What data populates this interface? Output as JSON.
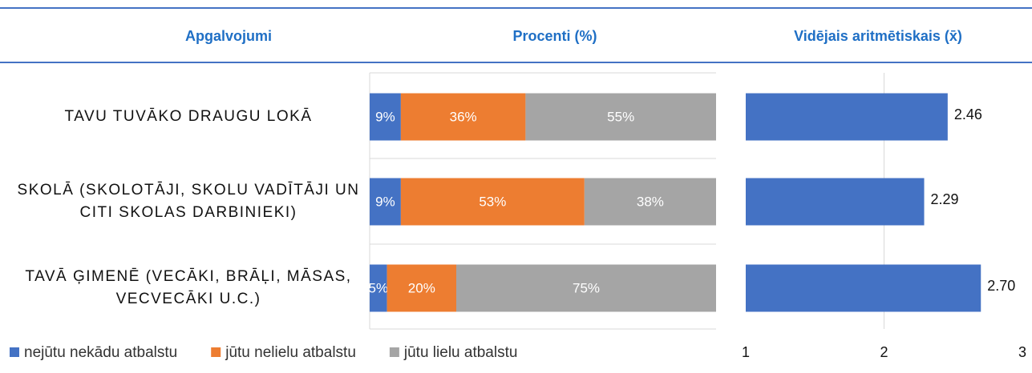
{
  "header": "Apgalvojumi",
  "chart_data": [
    {
      "type": "stacked-bar",
      "orientation": "horizontal",
      "title": "Procenti (%)",
      "categories": [
        "TAVU TUVĀKO DRAUGU LOKĀ",
        "SKOLĀ (SKOLOTĀJI, SKOLU VADĪTĀJI UN CITI SKOLAS DARBINIEKI)",
        "TAVĀ ĢIMENĒ (VECĀKI, BRĀĻI, MĀSAS, VECVECĀKI U.C.)"
      ],
      "xlim": [
        0,
        100
      ],
      "legend": "bottom",
      "series": [
        {
          "name": "nejūtu nekādu atbalstu",
          "color": "#4472c4",
          "values": [
            9,
            9,
            5
          ],
          "value_labels": [
            "9%",
            "9%",
            "5%"
          ]
        },
        {
          "name": "jūtu nelielu atbalstu",
          "color": "#ed7d31",
          "values": [
            36,
            53,
            20
          ],
          "value_labels": [
            "36%",
            "53%",
            "20%"
          ]
        },
        {
          "name": "jūtu lielu atbalstu",
          "color": "#a5a5a5",
          "values": [
            55,
            38,
            75
          ],
          "value_labels": [
            "55%",
            "38%",
            "75%"
          ]
        }
      ]
    },
    {
      "type": "bar",
      "orientation": "horizontal",
      "title": "Vidējais aritmētiskais (x̄)",
      "values": [
        2.46,
        2.29,
        2.7
      ],
      "value_labels": [
        "2.46",
        "2.29",
        "2.70"
      ],
      "color": "#4472c4",
      "xlim": [
        1,
        3
      ],
      "xticks": [
        1,
        2,
        3
      ],
      "grid": true
    }
  ]
}
